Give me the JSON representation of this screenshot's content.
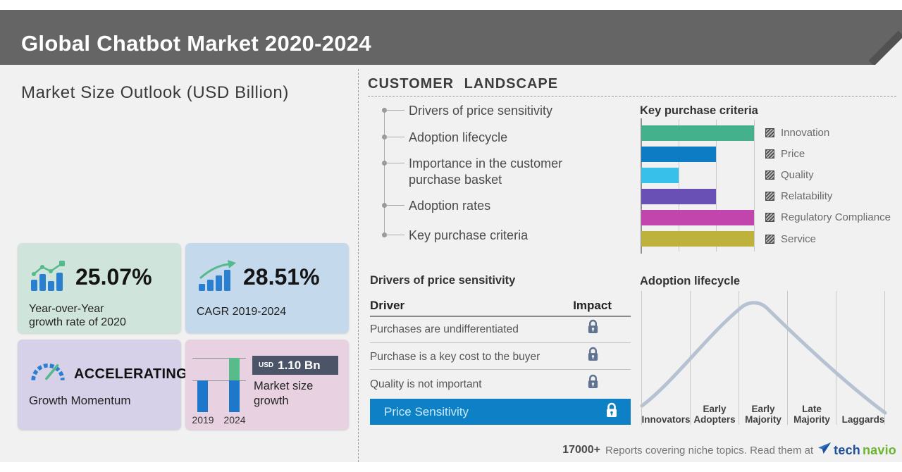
{
  "header": {
    "title": "Global Chatbot Market 2020-2024"
  },
  "market_size_outlook": {
    "title": "Market Size Outlook (USD Billion)",
    "cards": {
      "yoy": {
        "icon": "bar-chart-trend-icon",
        "value": "25.07%",
        "label_lines": [
          "Year-over-Year",
          "growth rate of 2020"
        ],
        "bg": "#cfe4da"
      },
      "cagr": {
        "icon": "bar-chart-arrow-icon",
        "value": "28.51%",
        "label": "CAGR 2019-2024",
        "bg": "#c4d9ec"
      },
      "momentum": {
        "icon": "speedometer-icon",
        "value": "ACCELERATING",
        "label": "Growth Momentum",
        "bg": "#d6d1e8"
      },
      "growth": {
        "icon": "mini-bar-chart",
        "badge_currency": "USD",
        "badge_value": "1.10 Bn",
        "label": "Market size growth",
        "bg": "#e8d2e2"
      }
    }
  },
  "customer_landscape": {
    "title": "CUSTOMER LANDSCAPE",
    "items": [
      "Drivers of price sensitivity",
      "Adoption lifecycle",
      "Importance in the customer purchase basket",
      "Adoption rates",
      "Key purchase criteria"
    ]
  },
  "drivers_table": {
    "title": "Drivers of price sensitivity",
    "columns": [
      "Driver",
      "Impact"
    ],
    "rows": [
      "Purchases are undifferentiated",
      "Purchase is a key cost to the buyer",
      "Quality is not important"
    ],
    "highlight": "Price Sensitivity",
    "impact_icon": "lock-icon"
  },
  "chart_data": [
    {
      "type": "bar",
      "orientation": "horizontal",
      "title": "Key purchase criteria",
      "categories": [
        "Innovation",
        "Price",
        "Quality",
        "Relatability",
        "Regulatory Compliance",
        "Service"
      ],
      "values": [
        1.0,
        0.66,
        0.33,
        0.66,
        1.0,
        1.0
      ],
      "xlim": [
        0,
        1
      ],
      "colors": [
        "#45b08c",
        "#0e7cc4",
        "#36c0ea",
        "#6950b4",
        "#c244ad",
        "#bfb23c"
      ],
      "legend_position": "right",
      "legend_swatch": "hatched-square",
      "grid": true,
      "note": "axis unlabeled; values are relative bar lengths vs gridlines at 1/3, 2/3, 1"
    },
    {
      "type": "line",
      "shape": "bell-curve",
      "title": "Adoption lifecycle",
      "categories": [
        "Innovators",
        "Early Adopters",
        "Early Majority",
        "Late Majority",
        "Laggards"
      ],
      "line_color": "#b6c2d1",
      "grid": true,
      "note": "unlabeled y-axis; curve peaks over Early Majority"
    },
    {
      "type": "bar",
      "title": "Market size growth",
      "categories": [
        "2019",
        "2024"
      ],
      "series": [
        {
          "name": "base (blue)",
          "values": [
            0.58,
            0.58
          ],
          "color": "#1d78cc"
        },
        {
          "name": "incremental growth (green)",
          "values": [
            0,
            0.42
          ],
          "color": "#57bb8a"
        }
      ],
      "annotation": "USD 1.10 Bn",
      "note": "stacked mini bars; total market size growth of USD 1.10 Bn from 2019 to 2024"
    }
  ],
  "footer": {
    "count": "17000+",
    "text": "Reports covering niche topics. Read them at",
    "brand": {
      "icon": "paper-plane-icon",
      "part1": "tech",
      "part2": "navio"
    }
  },
  "colors": {
    "header_bg": "#656565",
    "page_bg": "#f1f1f2",
    "highlight_blue": "#0e80c6",
    "lock_slate": "#5f7390",
    "curve": "#b6c2d1",
    "badge_bg": "#4b5567",
    "brand_blue": "#1c4f9e",
    "brand_green": "#6ab42e"
  }
}
